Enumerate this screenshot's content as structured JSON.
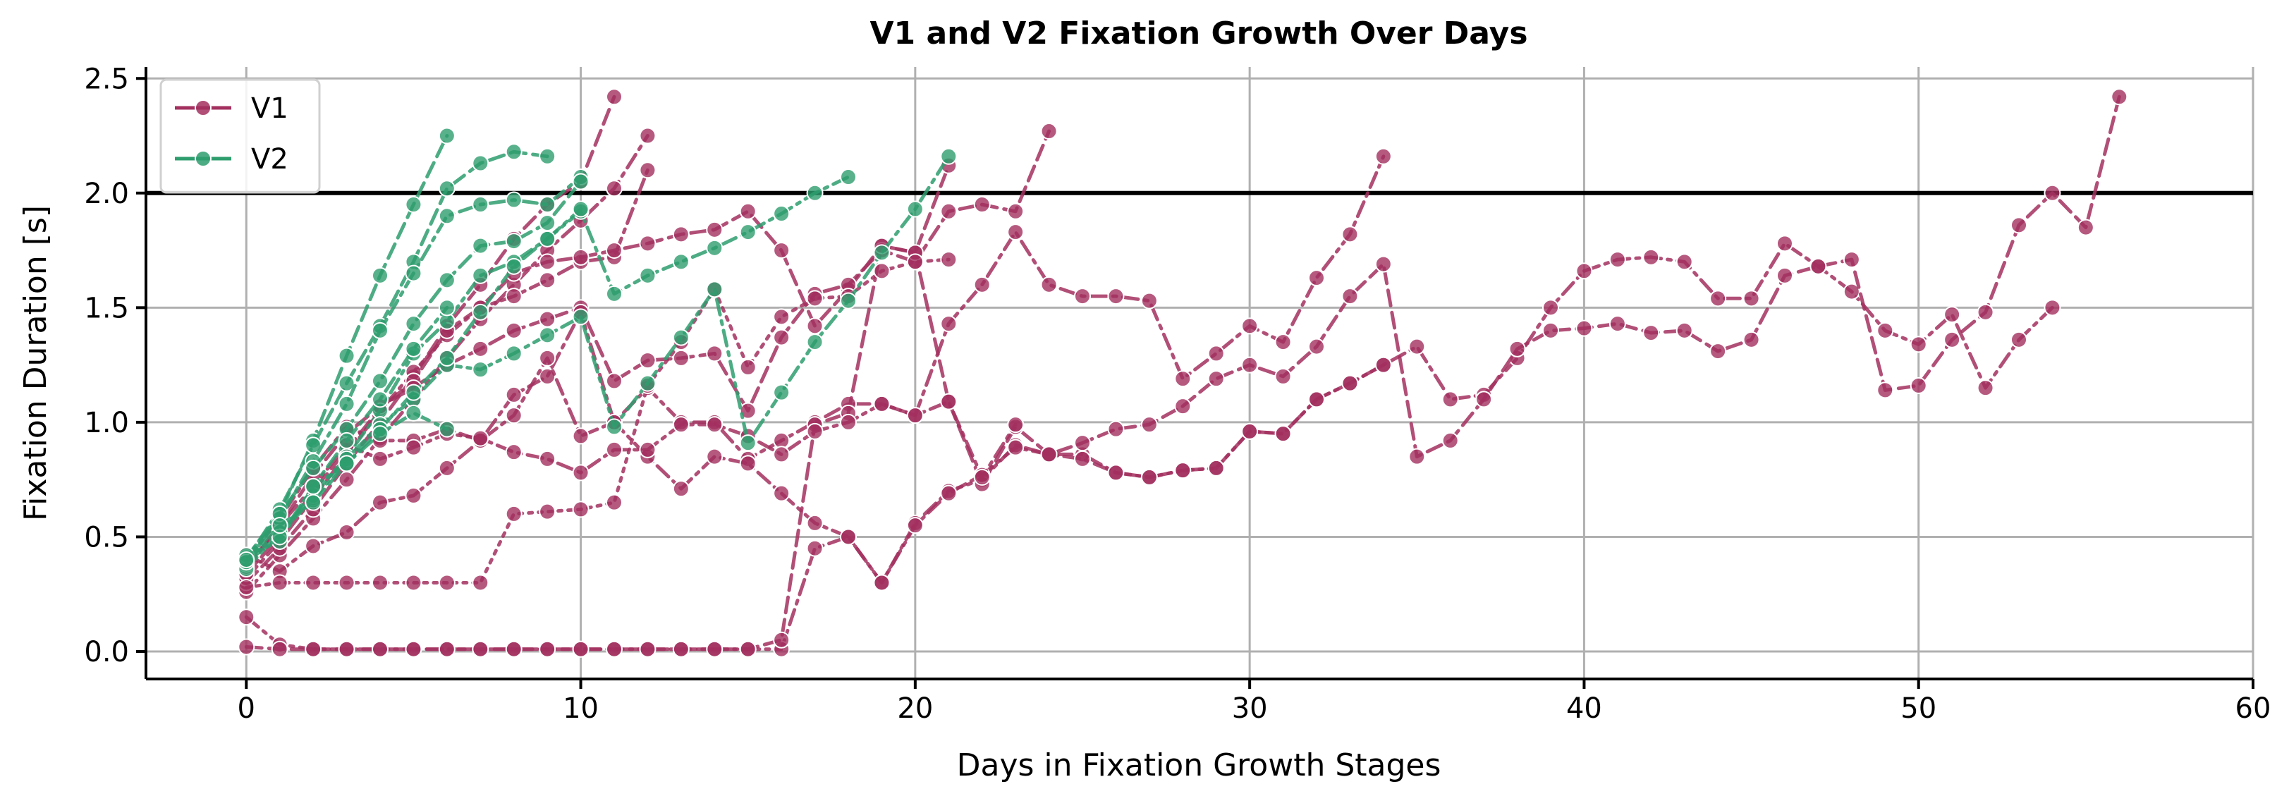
{
  "chart_data": {
    "type": "line",
    "title": "V1 and V2 Fixation Growth Over Days",
    "xlabel": "Days in Fixation Growth Stages",
    "ylabel": "Fixation Duration [s]",
    "xlim": [
      -3,
      60
    ],
    "ylim": [
      -0.12,
      2.55
    ],
    "xticks": [
      0,
      10,
      20,
      30,
      40,
      50,
      60
    ],
    "yticks": [
      0.0,
      0.5,
      1.0,
      1.5,
      2.0,
      2.5
    ],
    "ytick_labels": [
      "0.0",
      "0.5",
      "1.0",
      "1.5",
      "2.0",
      "2.5"
    ],
    "grid": true,
    "legend_position": "top-left",
    "threshold_line": {
      "y": 2.0,
      "color": "#000000"
    },
    "colors": {
      "V1": "#a3305f",
      "V2": "#2e9e6e"
    },
    "legend": [
      {
        "label": "V1",
        "color": "#a3305f"
      },
      {
        "label": "V2",
        "color": "#2e9e6e"
      }
    ],
    "series": [
      {
        "group": "V1",
        "dash": "dashdot",
        "x": [
          0,
          1,
          2,
          3,
          4,
          5,
          6,
          7,
          8,
          9,
          10,
          11,
          12
        ],
        "y": [
          0.26,
          0.42,
          0.58,
          0.75,
          0.93,
          1.1,
          1.28,
          1.45,
          1.6,
          1.75,
          1.88,
          2.02,
          2.25
        ]
      },
      {
        "group": "V1",
        "dash": "dashed",
        "x": [
          0,
          1,
          2,
          3,
          4,
          5,
          6,
          7,
          8,
          9,
          10,
          11
        ],
        "y": [
          0.3,
          0.45,
          0.62,
          0.82,
          1.0,
          1.2,
          1.42,
          1.6,
          1.8,
          1.95,
          2.05,
          2.42
        ]
      },
      {
        "group": "V1",
        "dash": "dashdot",
        "x": [
          0,
          1,
          2,
          3,
          4,
          5,
          6,
          7,
          8,
          9,
          10,
          11,
          12
        ],
        "y": [
          0.32,
          0.48,
          0.67,
          0.86,
          1.05,
          1.22,
          1.38,
          1.5,
          1.55,
          1.62,
          1.7,
          1.72,
          2.1
        ]
      },
      {
        "group": "V1",
        "dash": "dashed",
        "x": [
          0,
          1,
          2,
          3,
          4,
          5,
          6,
          7,
          8,
          9,
          10,
          11,
          12,
          13,
          14,
          15,
          16,
          17,
          18,
          19,
          20,
          21
        ],
        "y": [
          0.34,
          0.5,
          0.7,
          0.88,
          1.06,
          1.18,
          1.4,
          1.5,
          1.65,
          1.7,
          1.72,
          1.75,
          1.78,
          1.82,
          1.84,
          1.92,
          1.75,
          1.42,
          1.58,
          1.77,
          1.74,
          2.12
        ]
      },
      {
        "group": "V1",
        "dash": "dashed",
        "x": [
          0,
          1,
          2,
          3,
          4,
          5,
          6,
          7,
          8,
          9,
          10,
          11,
          12,
          13,
          14,
          15,
          16,
          17,
          18,
          19,
          20,
          21,
          22,
          23,
          24
        ],
        "y": [
          0.36,
          0.55,
          0.77,
          0.95,
          1.07,
          1.15,
          1.25,
          1.32,
          1.4,
          1.45,
          1.5,
          1.18,
          1.27,
          1.28,
          1.3,
          1.05,
          1.37,
          1.56,
          1.6,
          1.75,
          1.7,
          1.92,
          1.95,
          1.92,
          2.27
        ]
      },
      {
        "group": "V1",
        "dash": "dashdot",
        "x": [
          0,
          1,
          2,
          3,
          4,
          5,
          6,
          7,
          8,
          9,
          10,
          11,
          12,
          13,
          14,
          15,
          16,
          17,
          18,
          19,
          20,
          21,
          22,
          23,
          24,
          25,
          26,
          27,
          28,
          29,
          30,
          31,
          32,
          33,
          34
        ],
        "y": [
          0.4,
          0.58,
          0.8,
          0.98,
          0.92,
          0.92,
          0.97,
          0.92,
          1.12,
          1.2,
          1.48,
          1.0,
          1.15,
          1.0,
          1.0,
          0.84,
          0.92,
          1.0,
          1.08,
          1.08,
          1.03,
          1.43,
          1.6,
          1.83,
          1.6,
          1.55,
          1.55,
          1.53,
          1.19,
          1.3,
          1.42,
          1.35,
          1.63,
          1.82,
          2.16
        ]
      },
      {
        "group": "V1",
        "dash": "dashdot",
        "x": [
          0,
          1,
          2,
          3,
          4,
          5,
          6,
          7,
          8,
          9,
          10,
          11,
          12,
          13,
          14,
          15,
          16,
          17,
          18,
          19,
          20,
          21,
          22,
          23,
          24,
          25,
          26,
          27,
          28,
          29,
          30,
          31,
          32,
          33,
          34,
          35,
          36,
          37,
          38,
          39,
          40,
          41,
          42,
          43,
          44,
          45,
          46,
          47,
          48,
          49,
          50,
          51,
          52,
          53,
          54
        ],
        "y": [
          0.15,
          0.03,
          0.01,
          0.01,
          0.01,
          0.01,
          0.01,
          0.01,
          0.01,
          0.01,
          0.01,
          0.01,
          0.01,
          0.01,
          0.01,
          0.01,
          0.01,
          0.45,
          0.5,
          0.3,
          0.56,
          0.7,
          0.75,
          0.9,
          0.86,
          0.86,
          0.78,
          0.76,
          0.79,
          0.8,
          0.96,
          0.95,
          1.1,
          1.17,
          1.25,
          1.33,
          1.1,
          1.12,
          1.28,
          1.5,
          1.66,
          1.71,
          1.72,
          1.7,
          1.54,
          1.54,
          1.78,
          1.68,
          1.57,
          1.4,
          1.34,
          1.47,
          1.15,
          1.36,
          1.5
        ]
      },
      {
        "group": "V1",
        "dash": "dashed",
        "x": [
          0,
          1,
          2,
          3,
          4,
          5,
          6,
          7,
          8,
          9,
          10,
          11,
          12,
          13,
          14,
          15,
          16,
          17,
          18,
          19,
          20,
          21,
          22,
          23,
          24,
          25,
          26,
          27,
          28,
          29,
          30,
          31,
          32,
          33,
          34,
          35,
          36,
          37,
          38,
          39,
          40,
          41,
          42,
          43,
          44,
          45,
          46,
          47,
          48,
          49,
          50,
          51,
          52,
          53,
          54,
          55,
          56
        ],
        "y": [
          0.02,
          0.01,
          0.01,
          0.01,
          0.01,
          0.01,
          0.01,
          0.01,
          0.01,
          0.01,
          0.01,
          0.01,
          0.01,
          0.01,
          0.01,
          0.01,
          0.05,
          0.99,
          1.04,
          1.77,
          1.74,
          1.09,
          0.73,
          0.98,
          0.86,
          0.91,
          0.97,
          0.99,
          1.07,
          1.19,
          1.25,
          1.2,
          1.33,
          1.55,
          1.69,
          0.85,
          0.92,
          1.1,
          1.32,
          1.4,
          1.41,
          1.43,
          1.39,
          1.4,
          1.31,
          1.36,
          1.64,
          1.68,
          1.71,
          1.14,
          1.16,
          1.36,
          1.48,
          1.86,
          2.0,
          1.85,
          2.42
        ]
      },
      {
        "group": "V1",
        "dash": "dashdot",
        "x": [
          0,
          1,
          2,
          3,
          4,
          5,
          6,
          7,
          8,
          9,
          10,
          11,
          12,
          13,
          14,
          15,
          16,
          17,
          18,
          19,
          20,
          21,
          22,
          23,
          24,
          25,
          26,
          27,
          28,
          29,
          30,
          31,
          32,
          33,
          34
        ],
        "y": [
          0.42,
          0.35,
          0.46,
          0.52,
          0.65,
          0.68,
          0.8,
          0.92,
          1.03,
          1.28,
          0.94,
          1.0,
          0.85,
          0.71,
          0.85,
          0.82,
          0.69,
          0.56,
          0.5,
          0.3,
          0.55,
          0.69,
          0.77,
          0.89,
          0.86,
          0.84,
          0.78,
          0.76,
          0.79,
          0.8,
          0.96,
          0.95,
          1.1,
          1.17,
          1.25
        ]
      },
      {
        "group": "V1",
        "dash": "dashdot",
        "x": [
          0,
          1,
          2,
          3,
          4,
          5,
          6,
          7,
          8,
          9,
          10,
          11,
          12,
          13,
          14,
          15,
          16,
          17,
          18,
          19,
          20,
          21,
          22,
          23
        ],
        "y": [
          0.37,
          0.55,
          0.72,
          0.9,
          0.84,
          0.89,
          0.95,
          0.93,
          0.87,
          0.84,
          0.78,
          0.88,
          0.88,
          0.99,
          0.99,
          0.94,
          0.86,
          0.96,
          1.0,
          1.08,
          1.03,
          1.09,
          0.76,
          0.99
        ]
      },
      {
        "group": "V1",
        "dash": "dotted",
        "x": [
          0,
          1,
          2,
          3,
          4,
          5,
          6,
          7,
          8,
          9,
          10,
          11,
          12,
          13,
          14,
          15,
          16,
          17,
          18,
          19,
          20,
          21
        ],
        "y": [
          0.28,
          0.3,
          0.3,
          0.3,
          0.3,
          0.3,
          0.3,
          0.3,
          0.6,
          0.61,
          0.62,
          0.65,
          1.16,
          1.35,
          1.58,
          1.24,
          1.46,
          1.54,
          1.55,
          1.66,
          1.7,
          1.71
        ]
      },
      {
        "group": "V2",
        "dash": "dashed",
        "x": [
          0,
          1,
          2,
          3,
          4,
          5,
          6
        ],
        "y": [
          0.38,
          0.6,
          0.92,
          1.29,
          1.64,
          1.95,
          2.25
        ]
      },
      {
        "group": "V2",
        "dash": "dashed",
        "x": [
          0,
          1,
          2,
          3,
          4,
          5,
          6,
          7,
          8,
          9
        ],
        "y": [
          0.4,
          0.62,
          0.9,
          1.17,
          1.42,
          1.7,
          2.02,
          2.13,
          2.18,
          2.16
        ]
      },
      {
        "group": "V2",
        "dash": "dashdot",
        "x": [
          0,
          1,
          2,
          3,
          4,
          5,
          6,
          7,
          8,
          9,
          10
        ],
        "y": [
          0.4,
          0.58,
          0.83,
          1.08,
          1.4,
          1.65,
          1.9,
          1.95,
          1.97,
          1.95,
          2.07
        ]
      },
      {
        "group": "V2",
        "dash": "dashed",
        "x": [
          0,
          1,
          2,
          3,
          4,
          5,
          6,
          7,
          8,
          9,
          10
        ],
        "y": [
          0.41,
          0.6,
          0.8,
          0.97,
          1.18,
          1.43,
          1.62,
          1.77,
          1.79,
          1.87,
          2.05
        ]
      },
      {
        "group": "V2",
        "dash": "dashdot",
        "x": [
          0,
          1,
          2,
          3,
          4,
          5,
          6,
          7,
          8,
          9,
          10,
          11,
          12,
          13,
          14,
          15,
          16,
          17,
          18
        ],
        "y": [
          0.4,
          0.52,
          0.68,
          0.85,
          1.05,
          1.3,
          1.44,
          1.64,
          1.7,
          1.8,
          1.92,
          1.56,
          1.64,
          1.7,
          1.76,
          1.83,
          1.91,
          2.0,
          2.07
        ]
      },
      {
        "group": "V2",
        "dash": "dashdot",
        "x": [
          0,
          1,
          2,
          3,
          4,
          5,
          6,
          7,
          8,
          9,
          10,
          11,
          12,
          13,
          14,
          15,
          16,
          17,
          18,
          19,
          20,
          21
        ],
        "y": [
          0.36,
          0.52,
          0.66,
          0.84,
          0.99,
          1.1,
          1.25,
          1.23,
          1.3,
          1.38,
          1.46,
          0.98,
          1.17,
          1.37,
          1.58,
          0.91,
          1.13,
          1.35,
          1.53,
          1.74,
          1.93,
          2.16
        ]
      },
      {
        "group": "V2",
        "dash": "dashdot",
        "x": [
          0,
          1,
          2,
          3,
          4,
          5,
          6,
          7,
          8,
          9,
          10
        ],
        "y": [
          0.42,
          0.48,
          0.72,
          0.82,
          0.97,
          1.13,
          1.28,
          1.48,
          1.68,
          1.8,
          1.93
        ]
      },
      {
        "group": "V2",
        "dash": "dashdot",
        "x": [
          0,
          1,
          2,
          3,
          4,
          5,
          6
        ],
        "y": [
          0.39,
          0.5,
          0.72,
          0.92,
          1.1,
          1.32,
          1.5
        ]
      },
      {
        "group": "V2",
        "dash": "dashed",
        "x": [
          0,
          1,
          2,
          3,
          4,
          5,
          6
        ],
        "y": [
          0.4,
          0.55,
          0.65,
          0.82,
          0.95,
          1.04,
          0.97
        ]
      }
    ]
  }
}
